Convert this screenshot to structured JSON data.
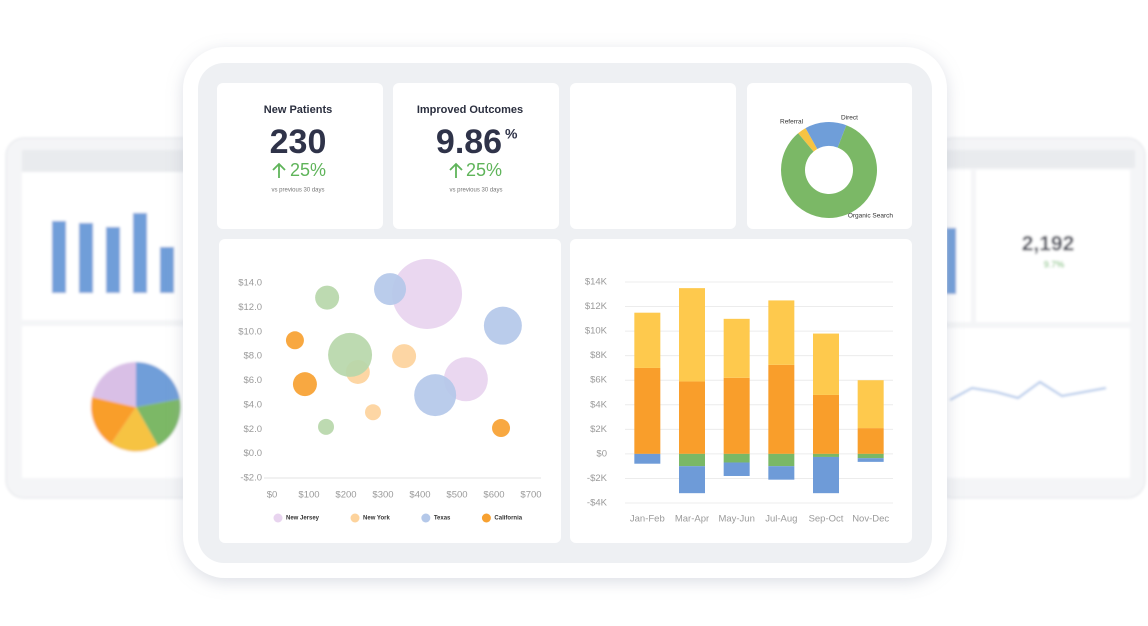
{
  "kpis": [
    {
      "title": "New Patients",
      "value": "230",
      "change": "25%",
      "note": "vs previous 30 days"
    },
    {
      "title": "Improved Outcomes",
      "value": "9.86",
      "unit": "%",
      "change": "25%",
      "note": "vs previous 30 days"
    }
  ],
  "background_kpi": {
    "value": "2,192",
    "change": "9.7%"
  },
  "chart_data": [
    {
      "type": "pie",
      "categories": [
        "Referral",
        "Direct",
        "Organic Search"
      ],
      "values": [
        3,
        14,
        83
      ],
      "colors": [
        "#f6c343",
        "#6f9ed9",
        "#7bb866"
      ]
    },
    {
      "type": "bubble",
      "xlim": [
        0,
        700
      ],
      "xticks": [
        {
          "value": 0,
          "label": "$0"
        },
        {
          "value": 100,
          "label": "$100"
        },
        {
          "value": 200,
          "label": "$200"
        },
        {
          "value": 300,
          "label": "$300"
        },
        {
          "value": 400,
          "label": "$400"
        },
        {
          "value": 500,
          "label": "$500"
        },
        {
          "value": 600,
          "label": "$600"
        },
        {
          "value": 700,
          "label": "$700"
        }
      ],
      "ylim": [
        -2,
        14
      ],
      "yticks": [
        {
          "value": -2,
          "label": "-$2.0"
        },
        {
          "value": 0,
          "label": "$0.0"
        },
        {
          "value": 2,
          "label": "$2.0"
        },
        {
          "value": 4,
          "label": "$4.0"
        },
        {
          "value": 6,
          "label": "$6.0"
        },
        {
          "value": 8,
          "label": "$8.0"
        },
        {
          "value": 10,
          "label": "$10.0"
        },
        {
          "value": 12,
          "label": "$12.0"
        },
        {
          "value": 14,
          "label": "$14.0"
        }
      ],
      "series": [
        {
          "name": "New Jersey",
          "color": "#e8d4ef",
          "x": [
            419,
            524
          ],
          "values": [
            13.1,
            6.1
          ],
          "sizes": [
            35,
            22
          ]
        },
        {
          "name": "New York",
          "color": "#fdd39c",
          "x": [
            357,
            232,
            273
          ],
          "values": [
            8.0,
            6.7,
            3.4
          ],
          "sizes": [
            12,
            12,
            8
          ]
        },
        {
          "name": "Texas",
          "color": "#b4c8e9",
          "x": [
            319,
            624,
            441
          ],
          "values": [
            13.5,
            10.5,
            4.8
          ],
          "sizes": [
            16,
            19,
            21
          ]
        },
        {
          "name": "California",
          "color": "#f7a131",
          "x": [
            62,
            89,
            619
          ],
          "values": [
            9.3,
            5.7,
            2.1
          ],
          "sizes": [
            9,
            12,
            9
          ]
        },
        {
          "color": "#b7d7aa",
          "x": [
            149,
            211,
            146
          ],
          "values": [
            12.8,
            8.1,
            2.2
          ],
          "sizes": [
            12,
            22,
            8
          ]
        }
      ]
    },
    {
      "type": "stacked_bar",
      "categories": [
        "Jan-Feb",
        "Mar-Apr",
        "May-Jun",
        "Jul-Aug",
        "Sep-Oct",
        "Nov-Dec"
      ],
      "ylim": [
        -4,
        14
      ],
      "yticks": [
        {
          "value": -4,
          "label": "-$4K"
        },
        {
          "value": -2,
          "label": "-$2K"
        },
        {
          "value": 0,
          "label": "$0"
        },
        {
          "value": 2,
          "label": "$2K"
        },
        {
          "value": 4,
          "label": "$4K"
        },
        {
          "value": 6,
          "label": "$6K"
        },
        {
          "value": 8,
          "label": "$8K"
        },
        {
          "value": 10,
          "label": "$10K"
        },
        {
          "value": 12,
          "label": "$12K"
        },
        {
          "value": 14,
          "label": "$14K"
        }
      ],
      "grid": true,
      "series": [
        {
          "color": "#f99e2b",
          "values": [
            7.0,
            5.9,
            6.2,
            7.25,
            4.8,
            2.1
          ]
        },
        {
          "color": "#fec94d",
          "values": [
            4.5,
            7.6,
            4.8,
            5.25,
            5.0,
            3.9
          ]
        },
        {
          "color": "#7ab866",
          "values": [
            0,
            -1.0,
            -0.7,
            -1.0,
            -0.25,
            -0.35
          ]
        },
        {
          "color": "#6e9bd8",
          "values": [
            -0.8,
            -2.2,
            -1.1,
            -1.1,
            -2.95,
            -0.3
          ]
        }
      ]
    }
  ]
}
